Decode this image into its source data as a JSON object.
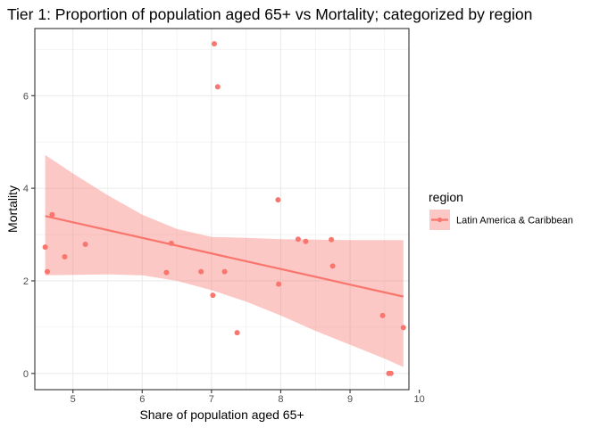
{
  "chart_data": {
    "type": "scatter",
    "title": "Tier 1: Proportion of population aged 65+ vs Mortality; categorized by region",
    "xlabel": "Share of population aged 65+",
    "ylabel": "Mortality",
    "xlim": [
      4.45,
      9.85
    ],
    "ylim": [
      -0.35,
      7.45
    ],
    "x_ticks": [
      5,
      6,
      7,
      8,
      9,
      10
    ],
    "y_ticks": [
      0,
      2,
      4,
      6
    ],
    "grid": true,
    "legend": {
      "title": "region",
      "placement": "right"
    },
    "series": [
      {
        "name": "Latin America & Caribbean",
        "color": "#f8766d",
        "points": [
          [
            4.6,
            2.73
          ],
          [
            4.63,
            2.2
          ],
          [
            4.7,
            3.43
          ],
          [
            4.88,
            2.52
          ],
          [
            5.18,
            2.79
          ],
          [
            6.35,
            2.18
          ],
          [
            6.42,
            2.81
          ],
          [
            6.85,
            2.2
          ],
          [
            7.02,
            1.69
          ],
          [
            7.04,
            7.12
          ],
          [
            7.09,
            6.19
          ],
          [
            7.19,
            2.2
          ],
          [
            7.37,
            0.88
          ],
          [
            7.96,
            3.75
          ],
          [
            7.97,
            1.93
          ],
          [
            8.25,
            2.9
          ],
          [
            8.36,
            2.85
          ],
          [
            8.73,
            2.89
          ],
          [
            8.75,
            2.32
          ],
          [
            9.47,
            1.25
          ],
          [
            9.56,
            0.0
          ],
          [
            9.59,
            0.0
          ],
          [
            9.77,
            0.99
          ]
        ],
        "trend": {
          "x": [
            4.6,
            9.77
          ],
          "y": [
            3.4,
            1.66
          ]
        },
        "band": {
          "x": [
            4.6,
            5.0,
            5.5,
            6.0,
            6.5,
            7.0,
            7.5,
            8.0,
            8.5,
            9.0,
            9.5,
            9.77
          ],
          "upper": [
            4.72,
            4.32,
            3.85,
            3.43,
            3.12,
            2.95,
            2.93,
            2.9,
            2.89,
            2.88,
            2.88,
            2.88
          ],
          "lower": [
            2.12,
            2.13,
            2.14,
            2.12,
            2.0,
            1.8,
            1.55,
            1.25,
            0.92,
            0.62,
            0.32,
            0.14
          ]
        }
      }
    ]
  }
}
